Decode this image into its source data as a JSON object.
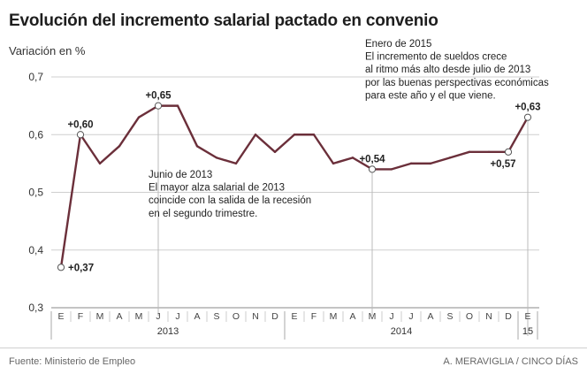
{
  "chart_data": {
    "type": "line",
    "title": "Evolución del incremento salarial pactado en convenio",
    "ylabel": "Variación en %",
    "xlabel": "",
    "ylim": [
      0.3,
      0.7
    ],
    "yticks": [
      "0,7",
      "0,6",
      "0,5",
      "0,4",
      "0,3"
    ],
    "ytick_values": [
      0.7,
      0.6,
      0.5,
      0.4,
      0.3
    ],
    "grid": true,
    "month_labels": [
      "E",
      "F",
      "M",
      "A",
      "M",
      "J",
      "J",
      "A",
      "S",
      "O",
      "N",
      "D",
      "E",
      "F",
      "M",
      "A",
      "M",
      "J",
      "J",
      "A",
      "S",
      "O",
      "N",
      "D",
      "E"
    ],
    "year_labels": [
      {
        "label": "2013",
        "start": 0,
        "end": 11
      },
      {
        "label": "2014",
        "start": 12,
        "end": 23
      },
      {
        "label": "15",
        "start": 24,
        "end": 24
      }
    ],
    "series": [
      {
        "name": "Incremento salarial pactado",
        "color": "#6b2f3a",
        "values": [
          0.37,
          0.6,
          0.55,
          0.58,
          0.63,
          0.65,
          0.65,
          0.58,
          0.56,
          0.55,
          0.6,
          0.57,
          0.6,
          0.6,
          0.55,
          0.56,
          0.54,
          0.54,
          0.55,
          0.55,
          0.56,
          0.57,
          0.57,
          0.57,
          0.63
        ]
      }
    ],
    "point_labels": [
      {
        "index": 0,
        "text": "+0,37",
        "anchor": "right"
      },
      {
        "index": 1,
        "text": "+0,60",
        "anchor": "above"
      },
      {
        "index": 5,
        "text": "+0,65",
        "anchor": "above"
      },
      {
        "index": 16,
        "text": "+0,54",
        "anchor": "above"
      },
      {
        "index": 23,
        "text": "+0,57",
        "anchor": "below"
      },
      {
        "index": 24,
        "text": "+0,63",
        "anchor": "above"
      }
    ],
    "annotations": [
      {
        "index": 5,
        "lines": [
          "Junio de 2013",
          "El mayor alza salarial de 2013",
          "coincide con la salida de la recesión",
          "en el segundo trimestre."
        ]
      },
      {
        "index": 24,
        "lines": [
          "Enero de 2015",
          "El incremento de sueldos crece",
          "al ritmo más alto desde julio de 2013",
          "por las buenas perspectivas económicas",
          "para este año y el que viene."
        ]
      }
    ]
  },
  "footer": {
    "source": "Fuente: Ministerio de Empleo",
    "credit": "A. MERAVIGLIA / CINCO DÍAS"
  }
}
